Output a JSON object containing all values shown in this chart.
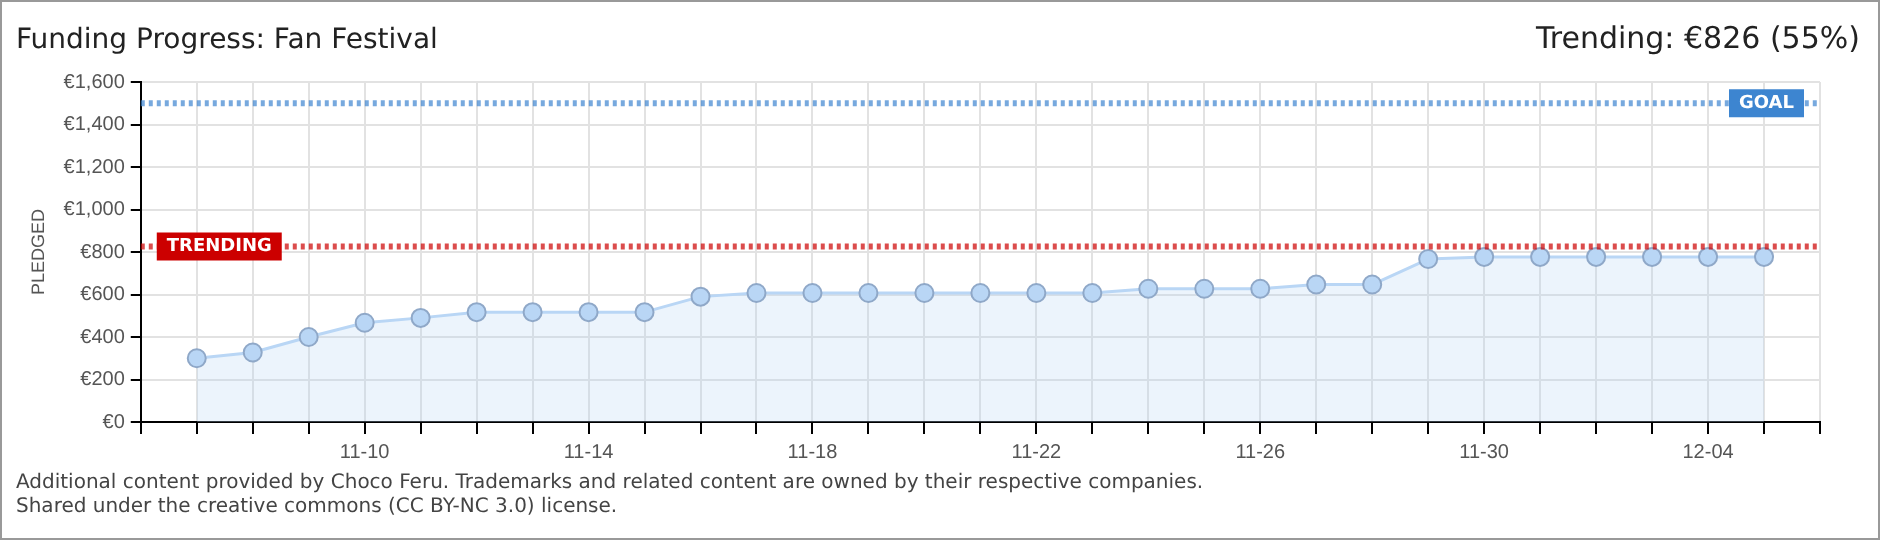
{
  "chart_data": {
    "type": "area",
    "title": "Funding Progress: Fan Festival",
    "subtitle": "Trending: €826 (55%)",
    "ylabel": "PLEDGED",
    "x": [
      "--11-07",
      "--11-08",
      "--11-09",
      "--11-10",
      "--11-11",
      "--11-12",
      "--11-13",
      "--11-14",
      "--11-15",
      "--11-16",
      "--11-17",
      "--11-18",
      "--11-19",
      "--11-20",
      "--11-21",
      "--11-22",
      "--11-23",
      "--11-24",
      "--11-25",
      "--11-26",
      "--11-27",
      "--11-28",
      "--11-29",
      "--11-30",
      "--12-01",
      "--12-02",
      "--12-03",
      "--12-04",
      "--12-05"
    ],
    "series": [
      {
        "color": "#b9d6f5",
        "values": [
          300,
          327,
          400,
          467,
          490,
          517,
          517,
          517,
          517,
          590,
          607,
          607,
          607,
          607,
          607,
          607,
          607,
          627,
          627,
          627,
          647,
          647,
          767,
          777,
          777,
          777,
          777,
          777,
          777
        ]
      }
    ],
    "xlim": [
      "--11-06",
      "--12-06"
    ],
    "xticks": [
      {
        "value": "--11-06",
        "label": null
      },
      {
        "value": "--11-07",
        "label": null
      },
      {
        "value": "--11-08",
        "label": null
      },
      {
        "value": "--11-09",
        "label": null
      },
      {
        "value": "--11-10",
        "label": "11-10"
      },
      {
        "value": "--11-11",
        "label": null
      },
      {
        "value": "--11-12",
        "label": null
      },
      {
        "value": "--11-13",
        "label": null
      },
      {
        "value": "--11-14",
        "label": "11-14"
      },
      {
        "value": "--11-15",
        "label": null
      },
      {
        "value": "--11-16",
        "label": null
      },
      {
        "value": "--11-17",
        "label": null
      },
      {
        "value": "--11-18",
        "label": "11-18"
      },
      {
        "value": "--11-19",
        "label": null
      },
      {
        "value": "--11-20",
        "label": null
      },
      {
        "value": "--11-21",
        "label": null
      },
      {
        "value": "--11-22",
        "label": "11-22"
      },
      {
        "value": "--11-23",
        "label": null
      },
      {
        "value": "--11-24",
        "label": null
      },
      {
        "value": "--11-25",
        "label": null
      },
      {
        "value": "--11-26",
        "label": "11-26"
      },
      {
        "value": "--11-27",
        "label": null
      },
      {
        "value": "--11-28",
        "label": null
      },
      {
        "value": "--11-29",
        "label": null
      },
      {
        "value": "--11-30",
        "label": "11-30"
      },
      {
        "value": "--12-01",
        "label": null
      },
      {
        "value": "--12-02",
        "label": null
      },
      {
        "value": "--12-03",
        "label": null
      },
      {
        "value": "--12-04",
        "label": "12-04"
      },
      {
        "value": "--12-05",
        "label": null
      },
      {
        "value": "--12-06",
        "label": null
      }
    ],
    "ylim": [
      0,
      1600
    ],
    "yticks": [
      {
        "value": 0,
        "label": "€0"
      },
      {
        "value": 200,
        "label": "€200"
      },
      {
        "value": 400,
        "label": "€400"
      },
      {
        "value": 600,
        "label": "€600"
      },
      {
        "value": 800,
        "label": "€800"
      },
      {
        "value": 1000,
        "label": "€1,000"
      },
      {
        "value": 1200,
        "label": "€1,200"
      },
      {
        "value": 1400,
        "label": "€1,400"
      },
      {
        "value": 1600,
        "label": "€1,600"
      }
    ],
    "ref_lines": [
      {
        "axis": "y",
        "value": 826,
        "label": "TRENDING",
        "color": "#cc0000",
        "line_style": "dotted"
      },
      {
        "axis": "y",
        "value": 1500,
        "label": "GOAL",
        "color": "#3d85d0",
        "line_style": "dotted"
      }
    ],
    "grid": true,
    "legend": false,
    "marker": "circle",
    "line_style": "solid",
    "annotations": [
      "Additional content provided by Choco Feru. Trademarks and related content are owned by their respective companies.",
      "Shared under the creative commons (CC BY-NC 3.0) license."
    ]
  }
}
